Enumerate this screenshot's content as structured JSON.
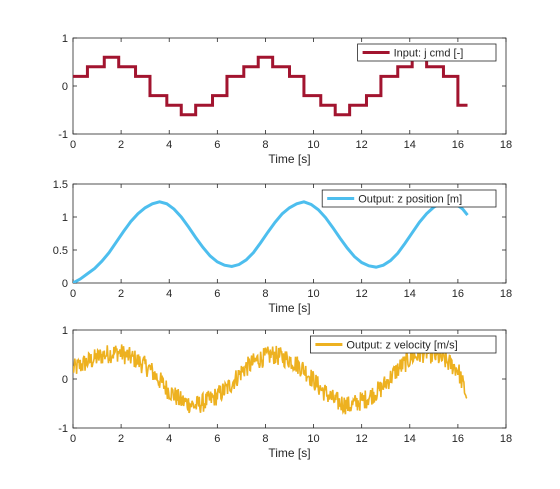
{
  "chart_data": [
    {
      "type": "line",
      "xlabel": "Time [s]",
      "ylabel": "",
      "xlim": [
        0,
        18
      ],
      "ylim": [
        -1,
        1
      ],
      "xticks": [
        0,
        2,
        4,
        6,
        8,
        10,
        12,
        14,
        16,
        18
      ],
      "yticks": [
        -1,
        0,
        1
      ],
      "grid": false,
      "legend_position": "top-right",
      "series": [
        {
          "name": "Input: j cmd [-]",
          "color": "#A2142F",
          "style": "step",
          "x": [
            0,
            0.6,
            0.6,
            1.3,
            1.3,
            1.9,
            1.9,
            2.6,
            2.6,
            3.2,
            3.2,
            3.9,
            3.9,
            4.5,
            4.5,
            5.1,
            5.1,
            5.8,
            5.8,
            6.4,
            6.4,
            7.1,
            7.1,
            7.7,
            7.7,
            8.3,
            8.3,
            9.0,
            9.0,
            9.6,
            9.6,
            10.3,
            10.3,
            10.9,
            10.9,
            11.5,
            11.5,
            12.2,
            12.2,
            12.8,
            12.8,
            13.5,
            13.5,
            14.1,
            14.1,
            14.7,
            14.7,
            15.4,
            15.4,
            16.0,
            16.0,
            16.4
          ],
          "y": [
            0.2,
            0.2,
            0.4,
            0.4,
            0.6,
            0.6,
            0.4,
            0.4,
            0.2,
            0.2,
            -0.2,
            -0.2,
            -0.4,
            -0.4,
            -0.6,
            -0.6,
            -0.4,
            -0.4,
            -0.2,
            -0.2,
            0.2,
            0.2,
            0.4,
            0.4,
            0.6,
            0.6,
            0.4,
            0.4,
            0.2,
            0.2,
            -0.2,
            -0.2,
            -0.4,
            -0.4,
            -0.6,
            -0.6,
            -0.4,
            -0.4,
            -0.2,
            -0.2,
            0.2,
            0.2,
            0.4,
            0.4,
            0.6,
            0.6,
            0.4,
            0.4,
            0.2,
            0.2,
            -0.4,
            -0.4
          ]
        }
      ]
    },
    {
      "type": "line",
      "xlabel": "Time [s]",
      "ylabel": "",
      "xlim": [
        0,
        18
      ],
      "ylim": [
        0,
        1.5
      ],
      "xticks": [
        0,
        2,
        4,
        6,
        8,
        10,
        12,
        14,
        16,
        18
      ],
      "yticks": [
        0,
        0.5,
        1,
        1.5
      ],
      "grid": false,
      "legend_position": "top-right",
      "series": [
        {
          "name": "Output: z position [m]",
          "color": "#4DBEEE",
          "style": "line",
          "x": [
            0,
            0.3,
            0.6,
            0.9,
            1.2,
            1.5,
            1.8,
            2.1,
            2.4,
            2.7,
            3.0,
            3.3,
            3.6,
            3.9,
            4.2,
            4.5,
            4.8,
            5.1,
            5.4,
            5.7,
            6.0,
            6.3,
            6.6,
            6.9,
            7.2,
            7.5,
            7.8,
            8.1,
            8.4,
            8.7,
            9.0,
            9.3,
            9.6,
            9.9,
            10.2,
            10.5,
            10.8,
            11.1,
            11.4,
            11.7,
            12.0,
            12.3,
            12.6,
            12.9,
            13.2,
            13.5,
            13.8,
            14.1,
            14.4,
            14.7,
            15.0,
            15.3,
            15.6,
            15.9,
            16.2,
            16.4
          ],
          "y": [
            0.0,
            0.06,
            0.14,
            0.22,
            0.33,
            0.46,
            0.62,
            0.78,
            0.93,
            1.05,
            1.14,
            1.2,
            1.23,
            1.2,
            1.12,
            1.0,
            0.85,
            0.69,
            0.54,
            0.41,
            0.32,
            0.27,
            0.25,
            0.28,
            0.35,
            0.46,
            0.61,
            0.77,
            0.92,
            1.05,
            1.14,
            1.2,
            1.23,
            1.19,
            1.11,
            0.99,
            0.84,
            0.68,
            0.53,
            0.4,
            0.31,
            0.26,
            0.24,
            0.27,
            0.34,
            0.45,
            0.6,
            0.76,
            0.92,
            1.05,
            1.15,
            1.21,
            1.23,
            1.2,
            1.12,
            1.03
          ]
        }
      ]
    },
    {
      "type": "line",
      "xlabel": "Time [s]",
      "ylabel": "",
      "xlim": [
        0,
        18
      ],
      "ylim": [
        -1,
        1
      ],
      "xticks": [
        0,
        2,
        4,
        6,
        8,
        10,
        12,
        14,
        16,
        18
      ],
      "yticks": [
        -1,
        0,
        1
      ],
      "grid": false,
      "legend_position": "top-right",
      "series": [
        {
          "name": "Output: z velocity [m/s]",
          "color": "#EDB120",
          "style": "noisy",
          "x": [
            0,
            0.6,
            1.3,
            1.9,
            2.6,
            3.2,
            3.9,
            4.5,
            5.1,
            5.8,
            6.4,
            7.1,
            7.7,
            8.3,
            9.0,
            9.6,
            10.3,
            10.9,
            11.5,
            12.2,
            12.8,
            13.5,
            14.1,
            14.7,
            15.4,
            16.0,
            16.4
          ],
          "y": [
            0.2,
            0.35,
            0.5,
            0.55,
            0.4,
            0.2,
            -0.2,
            -0.45,
            -0.55,
            -0.4,
            -0.2,
            0.2,
            0.4,
            0.5,
            0.4,
            0.2,
            -0.2,
            -0.45,
            -0.55,
            -0.4,
            -0.2,
            0.2,
            0.45,
            0.55,
            0.4,
            0.2,
            -0.4
          ],
          "noise_amplitude": 0.2
        }
      ]
    }
  ]
}
